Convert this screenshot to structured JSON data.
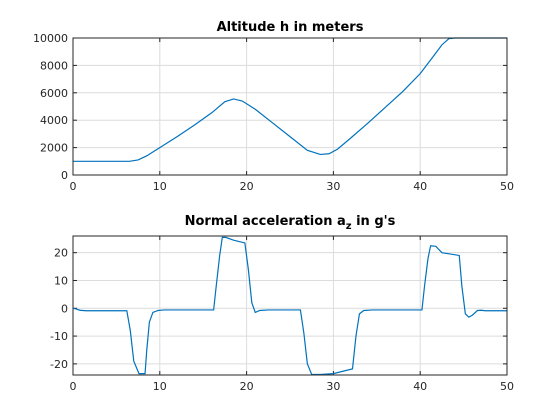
{
  "chart_data": [
    {
      "type": "line",
      "title": "Altitude h in meters",
      "xlabel": "",
      "ylabel": "",
      "xlim": [
        0,
        50
      ],
      "ylim": [
        0,
        10000
      ],
      "xticks": [
        0,
        10,
        20,
        30,
        40,
        50
      ],
      "xtick_labels": [
        "0",
        "10",
        "20",
        "30",
        "40",
        "50"
      ],
      "yticks": [
        0,
        2000,
        4000,
        6000,
        8000,
        10000
      ],
      "ytick_labels": [
        "0",
        "2000",
        "4000",
        "6000",
        "8000",
        "10000"
      ],
      "grid": true,
      "color": "#0072bd",
      "series": [
        {
          "x": [
            0,
            6.5,
            7.5,
            8.5,
            10,
            12,
            14,
            16,
            17.5,
            18.5,
            19.5,
            21,
            23,
            25,
            27,
            28.5,
            29.5,
            30.5,
            32,
            34,
            36,
            38,
            40,
            41.5,
            42.5,
            43.3,
            44,
            50
          ],
          "y": [
            1000,
            1000,
            1100,
            1400,
            2000,
            2800,
            3650,
            4550,
            5350,
            5550,
            5400,
            4800,
            3800,
            2800,
            1800,
            1500,
            1550,
            1900,
            2700,
            3800,
            4950,
            6100,
            7400,
            8650,
            9500,
            9950,
            10000,
            10000
          ]
        }
      ]
    },
    {
      "type": "line",
      "title": "Normal acceleration a",
      "title_subscript": "z",
      "title_suffix": " in g's",
      "xlabel": "",
      "ylabel": "",
      "xlim": [
        0,
        50
      ],
      "ylim": [
        -24,
        26
      ],
      "xticks": [
        0,
        10,
        20,
        30,
        40,
        50
      ],
      "xtick_labels": [
        "0",
        "10",
        "20",
        "30",
        "40",
        "50"
      ],
      "yticks": [
        -20,
        -10,
        0,
        10,
        20
      ],
      "ytick_labels": [
        "-20",
        "-10",
        "0",
        "10",
        "20"
      ],
      "grid": true,
      "color": "#0072bd",
      "series": [
        {
          "x": [
            0,
            0.3,
            0.8,
            1.5,
            6.2,
            6.6,
            7.0,
            7.6,
            8.3,
            8.5,
            8.8,
            9.2,
            9.8,
            10.5,
            16.2,
            16.5,
            16.9,
            17.2,
            17.6,
            18.5,
            19.8,
            20.2,
            20.6,
            21.0,
            21.5,
            22.5,
            26.2,
            26.6,
            27.0,
            27.5,
            28.5,
            30,
            32.2,
            32.6,
            33.0,
            33.5,
            34.5,
            40.2,
            40.5,
            40.9,
            41.2,
            41.8,
            42.5,
            43.5,
            44.5,
            44.8,
            45.2,
            45.6,
            46.0,
            46.6,
            47.0,
            47.5,
            50
          ],
          "y": [
            0,
            -0.2,
            -0.7,
            -0.9,
            -0.9,
            -8,
            -19,
            -23.5,
            -23.5,
            -15,
            -5,
            -1.5,
            -0.8,
            -0.6,
            -0.6,
            8,
            19,
            25.5,
            25.5,
            24.5,
            23.5,
            14,
            2,
            -1.5,
            -0.8,
            -0.6,
            -0.6,
            -9,
            -20,
            -23.8,
            -23.8,
            -23.5,
            -21.8,
            -10,
            -2,
            -0.8,
            -0.6,
            -0.6,
            8,
            18,
            22.5,
            22.3,
            20,
            19.5,
            19,
            8,
            -2,
            -3.2,
            -2.5,
            -0.8,
            -0.7,
            -0.9,
            -0.9
          ]
        }
      ]
    }
  ]
}
